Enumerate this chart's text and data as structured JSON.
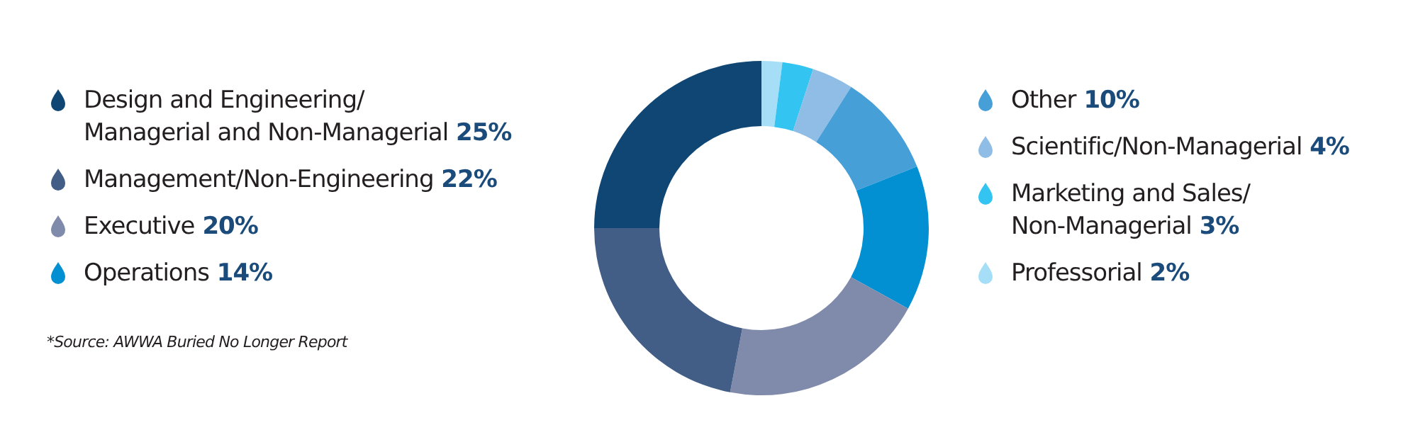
{
  "chart_data": {
    "type": "donut",
    "categories": [
      "Design and Engineering/Managerial and Non-Managerial",
      "Management/Non-Engineering",
      "Executive",
      "Operations",
      "Other",
      "Scientific/Non-Managerial",
      "Marketing and Sales/Non-Managerial",
      "Professorial"
    ],
    "values": [
      25,
      22,
      20,
      14,
      10,
      4,
      3,
      2
    ],
    "value_labels": [
      "25%",
      "22%",
      "20%",
      "14%",
      "10%",
      "4%",
      "3%",
      "2%"
    ],
    "colors": [
      "#0f4674",
      "#425d86",
      "#808aaa",
      "#0290d2",
      "#479fd8",
      "#8fbde6",
      "#33c4f2",
      "#a6ddf7"
    ],
    "legend": "left",
    "annotations": [
      "*Source: AWWA Buried No Longer Report"
    ]
  }
}
